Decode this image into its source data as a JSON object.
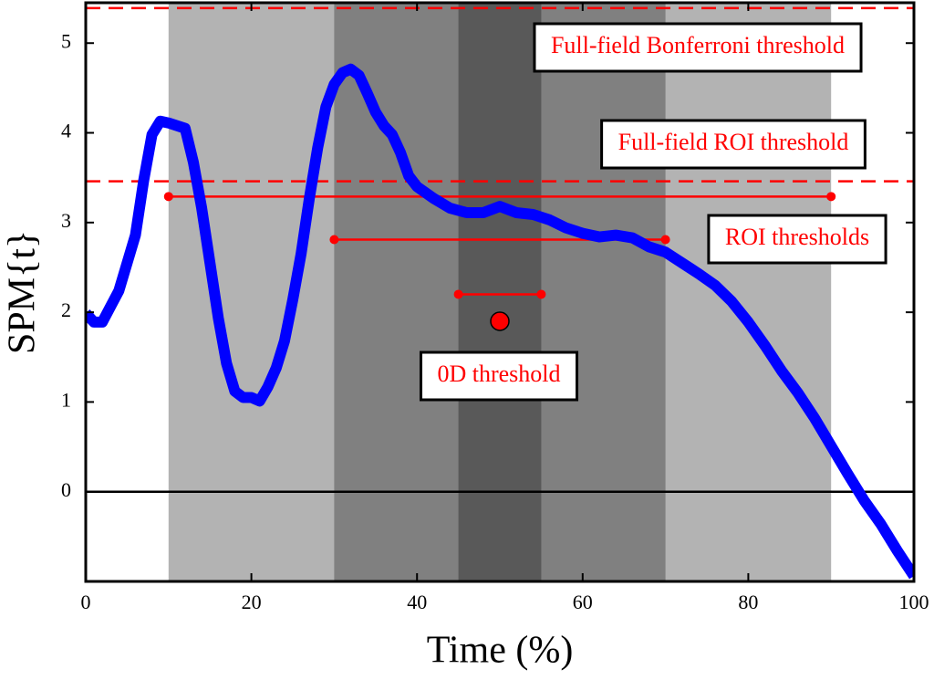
{
  "chart_data": {
    "type": "line",
    "xlabel": "Time  (%)",
    "ylabel": "SPM{t}",
    "xlim": [
      0,
      100
    ],
    "ylim": [
      -1,
      5.45
    ],
    "xticks": [
      0,
      20,
      40,
      60,
      80,
      100
    ],
    "yticks": [
      0,
      1,
      2,
      3,
      4,
      5
    ],
    "x": [
      0,
      1,
      2,
      4,
      6,
      7,
      8,
      9,
      10,
      12,
      13,
      14,
      15,
      16,
      17,
      18,
      19,
      20,
      21,
      22,
      23,
      24,
      25,
      26,
      27,
      28,
      29,
      30,
      31,
      32,
      33,
      34,
      35,
      36,
      37,
      38,
      39,
      40,
      42,
      44,
      46,
      48,
      50,
      52,
      54,
      56,
      58,
      60,
      62,
      64,
      66,
      68,
      70,
      72,
      74,
      76,
      78,
      80,
      82,
      84,
      86,
      88,
      90,
      92,
      94,
      96,
      98,
      100
    ],
    "series": [
      {
        "color": "#0000ff",
        "values": [
          1.99,
          1.89,
          1.89,
          2.24,
          2.86,
          3.47,
          3.98,
          4.13,
          4.11,
          4.05,
          3.67,
          3.16,
          2.55,
          1.94,
          1.43,
          1.12,
          1.05,
          1.05,
          1.01,
          1.17,
          1.38,
          1.68,
          2.14,
          2.65,
          3.27,
          3.83,
          4.29,
          4.54,
          4.67,
          4.71,
          4.64,
          4.44,
          4.23,
          4.08,
          3.98,
          3.78,
          3.52,
          3.4,
          3.27,
          3.16,
          3.11,
          3.11,
          3.18,
          3.11,
          3.09,
          3.03,
          2.94,
          2.88,
          2.84,
          2.86,
          2.83,
          2.73,
          2.67,
          2.55,
          2.43,
          2.3,
          2.12,
          1.89,
          1.63,
          1.35,
          1.1,
          0.82,
          0.51,
          0.2,
          -0.1,
          -0.36,
          -0.66,
          -0.94
        ]
      }
    ],
    "regions": [
      {
        "xlim": [
          10,
          90
        ],
        "color": "#b3b3b3"
      },
      {
        "xlim": [
          30,
          70
        ],
        "color": "#808080"
      },
      {
        "xlim": [
          45,
          55
        ],
        "color": "#595959"
      }
    ],
    "threshold_color": "#ff0000",
    "reference_lines": [
      {
        "label": "Full-field Bonferroni threshold",
        "value": 5.39
      },
      {
        "label": "Full-field ROI threshold",
        "value": 3.46
      }
    ],
    "roi_thresholds": {
      "label": "ROI thresholds",
      "segments": [
        {
          "xlim": [
            10,
            90
          ],
          "value": 3.29
        },
        {
          "xlim": [
            30,
            70
          ],
          "value": 2.81
        },
        {
          "xlim": [
            45,
            55
          ],
          "value": 2.2
        }
      ]
    },
    "zero_d_threshold": {
      "label": "0D threshold",
      "x": 50,
      "value": 1.9
    }
  }
}
